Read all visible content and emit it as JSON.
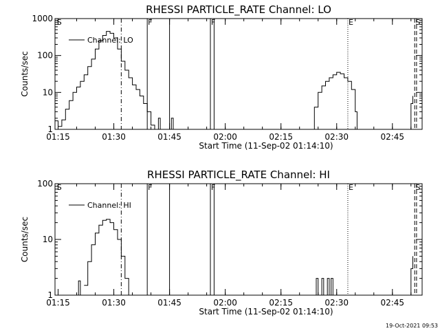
{
  "footer": {
    "timestamp": "19-Oct-2021 09:53"
  },
  "chart_data": [
    {
      "type": "line",
      "title": "RHESSI PARTICLE_RATE Channel: LO",
      "xlabel": "Start Time (11-Sep-02 01:14:10)",
      "ylabel": "Counts/sec",
      "yscale": "log",
      "ylim": [
        1,
        1000
      ],
      "xlim": [
        "01:14:10",
        "02:53:00"
      ],
      "xticks": [
        "01:15",
        "01:30",
        "01:45",
        "02:00",
        "02:15",
        "02:30",
        "02:45"
      ],
      "yticks": [
        "1",
        "10",
        "100",
        "1000"
      ],
      "legend": {
        "entries": [
          "Channel: LO"
        ],
        "position": "top-left"
      },
      "series": [
        {
          "name": "Channel: LO",
          "segments": [
            [
              [
                "01:14:10",
                1.7
              ],
              [
                "01:15:00",
                1.2
              ],
              [
                "01:16:00",
                1.8
              ],
              [
                "01:17:00",
                3.5
              ],
              [
                "01:18:00",
                6
              ],
              [
                "01:19:00",
                10
              ],
              [
                "01:20:00",
                14
              ],
              [
                "01:21:00",
                20
              ],
              [
                "01:22:00",
                30
              ],
              [
                "01:23:00",
                50
              ],
              [
                "01:24:00",
                80
              ],
              [
                "01:25:00",
                150
              ],
              [
                "01:26:00",
                250
              ],
              [
                "01:27:00",
                350
              ],
              [
                "01:28:00",
                450
              ],
              [
                "01:29:00",
                400
              ],
              [
                "01:30:00",
                300
              ],
              [
                "01:31:00",
                150
              ],
              [
                "01:32:00",
                70
              ],
              [
                "01:33:00",
                40
              ],
              [
                "01:34:00",
                25
              ],
              [
                "01:35:00",
                16
              ],
              [
                "01:36:00",
                12
              ],
              [
                "01:37:00",
                8
              ],
              [
                "01:38:00",
                5
              ],
              [
                "01:39:00",
                3
              ],
              [
                "01:40:00",
                1.3
              ],
              [
                "01:41:00",
                1
              ]
            ],
            [
              [
                "01:41:30",
                1
              ],
              [
                "01:42:00",
                2
              ],
              [
                "01:42:30",
                1
              ]
            ],
            [
              [
                "01:45:00",
                1
              ],
              [
                "01:45:30",
                2
              ],
              [
                "01:46:00",
                1
              ]
            ],
            [
              [
                "02:23:00",
                1
              ],
              [
                "02:24:00",
                4
              ],
              [
                "02:25:00",
                10
              ],
              [
                "02:26:00",
                15
              ],
              [
                "02:27:00",
                20
              ],
              [
                "02:28:00",
                25
              ],
              [
                "02:29:00",
                30
              ],
              [
                "02:30:00",
                35
              ],
              [
                "02:31:00",
                32
              ],
              [
                "02:32:00",
                25
              ],
              [
                "02:33:00",
                20
              ],
              [
                "02:34:00",
                12
              ],
              [
                "02:35:00",
                3
              ],
              [
                "02:35:30",
                1
              ]
            ],
            [
              [
                "02:49:00",
                1
              ],
              [
                "02:50:00",
                5
              ],
              [
                "02:50:30",
                8
              ]
            ]
          ]
        }
      ],
      "markers": [
        {
          "label": "S",
          "time": "01:14:30",
          "style": "none"
        },
        {
          "label": "",
          "time": "01:32:00",
          "style": "dashdot"
        },
        {
          "label": "F",
          "time": "01:39:00",
          "style": "solid"
        },
        {
          "label": "",
          "time": "01:45:00",
          "style": "solid"
        },
        {
          "label": "F",
          "time": "01:56:00",
          "style": "solid"
        },
        {
          "label": "",
          "time": "01:57:00",
          "style": "solid"
        },
        {
          "label": "E",
          "time": "02:33:00",
          "style": "dotted"
        },
        {
          "label": "S",
          "time": "02:51:00",
          "style": "dashed"
        },
        {
          "label": "",
          "time": "02:51:30",
          "style": "dashed"
        }
      ]
    },
    {
      "type": "line",
      "title": "RHESSI PARTICLE_RATE Channel: HI",
      "xlabel": "Start Time (11-Sep-02 01:14:10)",
      "ylabel": "Counts/sec",
      "yscale": "log",
      "ylim": [
        1,
        100
      ],
      "xlim": [
        "01:14:10",
        "02:53:00"
      ],
      "xticks": [
        "01:15",
        "01:30",
        "01:45",
        "02:00",
        "02:15",
        "02:30",
        "02:45"
      ],
      "yticks": [
        "1",
        "10",
        "100"
      ],
      "legend": {
        "entries": [
          "Channel: HI"
        ],
        "position": "top-left"
      },
      "series": [
        {
          "name": "Channel: HI",
          "segments": [
            [
              [
                "01:20:00",
                1
              ],
              [
                "01:20:30",
                1.8
              ],
              [
                "01:21:00",
                1
              ]
            ],
            [
              [
                "01:22:00",
                1.5
              ],
              [
                "01:23:00",
                4
              ],
              [
                "01:24:00",
                8
              ],
              [
                "01:25:00",
                13
              ],
              [
                "01:26:00",
                18
              ],
              [
                "01:27:00",
                22
              ],
              [
                "01:28:00",
                23
              ],
              [
                "01:29:00",
                20
              ],
              [
                "01:30:00",
                15
              ],
              [
                "01:31:00",
                10
              ],
              [
                "01:32:00",
                5
              ],
              [
                "01:33:00",
                2
              ],
              [
                "01:34:00",
                1
              ]
            ],
            [
              [
                "02:24:00",
                1
              ],
              [
                "02:24:30",
                2
              ],
              [
                "02:25:00",
                1
              ]
            ],
            [
              [
                "02:25:30",
                1
              ],
              [
                "02:26:00",
                2
              ],
              [
                "02:26:30",
                1
              ]
            ],
            [
              [
                "02:27:00",
                1
              ],
              [
                "02:27:30",
                2
              ],
              [
                "02:28:00",
                1
              ],
              [
                "02:28:30",
                2
              ],
              [
                "02:29:00",
                1
              ]
            ],
            [
              [
                "02:49:00",
                1
              ],
              [
                "02:50:00",
                3
              ],
              [
                "02:50:30",
                5
              ]
            ]
          ]
        }
      ],
      "markers": [
        {
          "label": "S",
          "time": "01:14:30",
          "style": "none"
        },
        {
          "label": "",
          "time": "01:32:00",
          "style": "dashdot"
        },
        {
          "label": "F",
          "time": "01:39:00",
          "style": "solid"
        },
        {
          "label": "",
          "time": "01:45:00",
          "style": "solid"
        },
        {
          "label": "F",
          "time": "01:56:00",
          "style": "solid"
        },
        {
          "label": "",
          "time": "01:57:00",
          "style": "solid"
        },
        {
          "label": "E",
          "time": "02:33:00",
          "style": "dotted"
        },
        {
          "label": "S",
          "time": "02:51:00",
          "style": "dashed"
        },
        {
          "label": "",
          "time": "02:51:30",
          "style": "dashed"
        }
      ]
    }
  ]
}
